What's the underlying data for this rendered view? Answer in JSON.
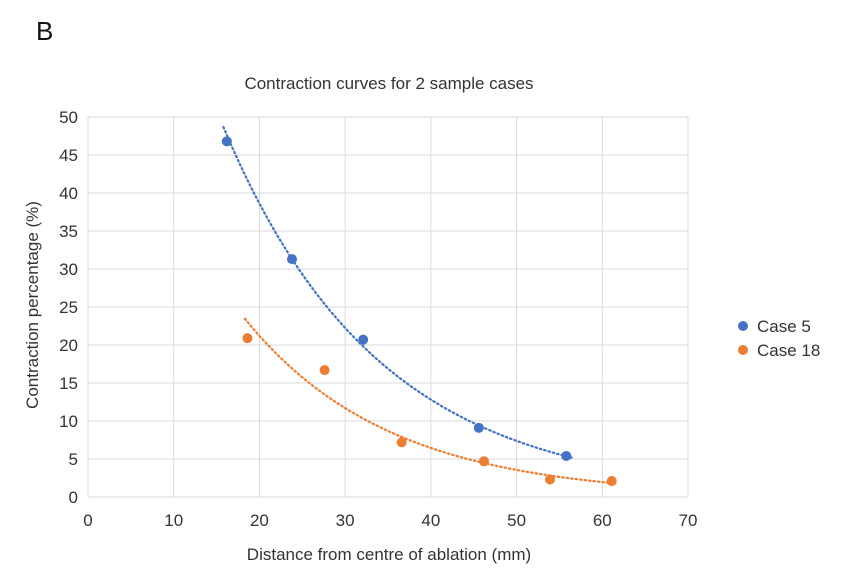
{
  "panel_label": "B",
  "chart_data": {
    "type": "scatter",
    "title": "Contraction curves for 2 sample cases",
    "xlabel": "Distance from centre of ablation (mm)",
    "ylabel": "Contraction percentage (%)",
    "xlim": [
      0,
      70
    ],
    "ylim": [
      0,
      50
    ],
    "xticks": [
      0,
      10,
      20,
      30,
      40,
      50,
      60,
      70
    ],
    "yticks": [
      0,
      5,
      10,
      15,
      20,
      25,
      30,
      35,
      40,
      45,
      50
    ],
    "grid": true,
    "legend_position": "right",
    "trendline": "dotted exponential",
    "series": [
      {
        "name": "Case 5",
        "color": "#4472C4",
        "points": [
          [
            16.2,
            46.8
          ],
          [
            23.8,
            31.3
          ],
          [
            32.1,
            20.7
          ],
          [
            45.6,
            9.1
          ],
          [
            55.8,
            5.4
          ]
        ],
        "trend_range": [
          15.8,
          56.5
        ]
      },
      {
        "name": "Case 18",
        "color": "#ED7D31",
        "points": [
          [
            18.6,
            20.9
          ],
          [
            27.6,
            16.7
          ],
          [
            36.6,
            7.2
          ],
          [
            46.2,
            4.7
          ],
          [
            53.9,
            2.3
          ],
          [
            61.1,
            2.1
          ]
        ],
        "trend_range": [
          18.3,
          61.0
        ]
      }
    ]
  }
}
